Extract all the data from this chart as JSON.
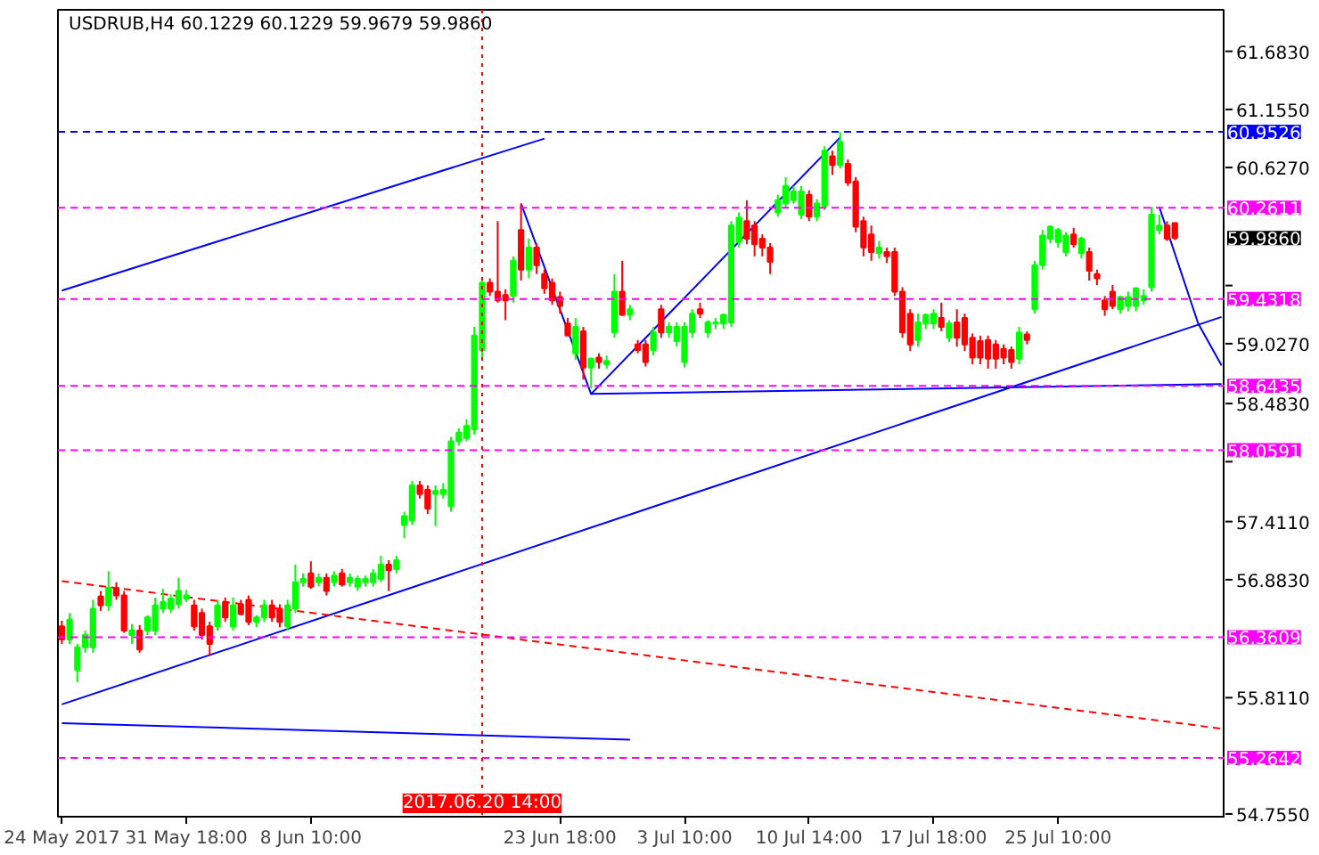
{
  "chart_data": {
    "type": "candlestick",
    "title": "USDRUB,H4 60.1229 60.1229 59.9679 59.9860",
    "categories": [
      "24 May 2017",
      null,
      null,
      null,
      null,
      null,
      null,
      null,
      null,
      null,
      null,
      null,
      null,
      null,
      null,
      null,
      "31 May 18:00",
      null,
      null,
      null,
      null,
      null,
      null,
      null,
      null,
      null,
      null,
      null,
      null,
      null,
      null,
      null,
      "8 Jun 10:00",
      null,
      null,
      null,
      null,
      null,
      null,
      null,
      null,
      null,
      null,
      null,
      null,
      null,
      null,
      null,
      null,
      null,
      null,
      null,
      null,
      null,
      "2017.06.20 14:00",
      null,
      null,
      null,
      null,
      null,
      null,
      null,
      null,
      null,
      "23 Jun 18:00",
      null,
      null,
      null,
      null,
      null,
      null,
      null,
      null,
      null,
      null,
      null,
      null,
      null,
      null,
      null,
      "3 Jul 10:00",
      null,
      null,
      null,
      null,
      null,
      null,
      null,
      null,
      null,
      null,
      null,
      null,
      null,
      null,
      null,
      "10 Jul 14:00",
      null,
      null,
      null,
      null,
      null,
      null,
      null,
      null,
      null,
      null,
      null,
      null,
      null,
      null,
      null,
      "17 Jul 18:00",
      null,
      null,
      null,
      null,
      null,
      null,
      null,
      null,
      null,
      null,
      null,
      null,
      null,
      null,
      null,
      "25 Jul 10:00",
      null,
      null,
      null,
      null,
      null,
      null,
      null,
      null,
      null,
      null,
      null,
      null,
      null,
      null,
      null,
      null,
      null,
      null,
      null,
      null,
      null
    ],
    "ohlc": [
      [
        56.46,
        56.51,
        56.3,
        56.34
      ],
      [
        56.34,
        56.58,
        56.3,
        56.52
      ],
      [
        56.06,
        56.3,
        55.95,
        56.27
      ],
      [
        56.27,
        56.42,
        56.22,
        56.38
      ],
      [
        56.27,
        56.7,
        56.22,
        56.62
      ],
      [
        56.73,
        56.78,
        56.6,
        56.65
      ],
      [
        56.65,
        56.96,
        56.6,
        56.81
      ],
      [
        56.81,
        56.86,
        56.7,
        56.74
      ],
      [
        56.74,
        56.78,
        56.4,
        56.42
      ],
      [
        56.38,
        56.48,
        56.3,
        56.42
      ],
      [
        56.42,
        56.47,
        56.22,
        56.25
      ],
      [
        56.42,
        56.56,
        56.38,
        56.54
      ],
      [
        56.42,
        56.72,
        56.38,
        56.65
      ],
      [
        56.62,
        56.8,
        56.58,
        56.68
      ],
      [
        56.62,
        56.75,
        56.58,
        56.71
      ],
      [
        56.66,
        56.9,
        56.62,
        56.78
      ],
      [
        56.71,
        56.79,
        56.68,
        56.74
      ],
      [
        56.65,
        56.7,
        56.42,
        56.46
      ],
      [
        56.58,
        56.62,
        56.34,
        56.38
      ],
      [
        56.46,
        56.5,
        56.19,
        56.3
      ],
      [
        56.46,
        56.7,
        56.42,
        56.65
      ],
      [
        56.68,
        56.72,
        56.5,
        56.54
      ],
      [
        56.46,
        56.72,
        56.42,
        56.65
      ],
      [
        56.66,
        56.7,
        56.56,
        56.57
      ],
      [
        56.7,
        56.74,
        56.47,
        56.5
      ],
      [
        56.5,
        56.56,
        56.45,
        56.54
      ],
      [
        56.54,
        56.7,
        56.5,
        56.65
      ],
      [
        56.65,
        56.7,
        56.5,
        56.54
      ],
      [
        56.62,
        56.66,
        56.45,
        56.5
      ],
      [
        56.46,
        56.7,
        56.42,
        56.65
      ],
      [
        56.62,
        57.02,
        56.58,
        56.86
      ],
      [
        56.86,
        56.94,
        56.82,
        56.89
      ],
      [
        56.94,
        57.05,
        56.8,
        56.82
      ],
      [
        56.86,
        56.94,
        56.82,
        56.9
      ],
      [
        56.9,
        56.94,
        56.74,
        56.78
      ],
      [
        56.86,
        56.96,
        56.82,
        56.92
      ],
      [
        56.94,
        56.98,
        56.82,
        56.84
      ],
      [
        56.86,
        56.94,
        56.82,
        56.9
      ],
      [
        56.82,
        56.92,
        56.78,
        56.89
      ],
      [
        56.86,
        56.92,
        56.82,
        56.89
      ],
      [
        56.86,
        56.98,
        56.82,
        56.94
      ],
      [
        56.89,
        57.1,
        56.86,
        57.02
      ],
      [
        57.02,
        57.06,
        56.78,
        56.97
      ],
      [
        56.98,
        57.1,
        56.94,
        57.06
      ],
      [
        57.38,
        57.5,
        57.26,
        57.46
      ],
      [
        57.42,
        57.78,
        57.38,
        57.74
      ],
      [
        57.74,
        57.78,
        57.62,
        57.66
      ],
      [
        57.7,
        57.74,
        57.48,
        57.53
      ],
      [
        57.66,
        57.74,
        57.37,
        57.69
      ],
      [
        57.66,
        57.76,
        57.62,
        57.7
      ],
      [
        57.55,
        58.18,
        57.5,
        58.14
      ],
      [
        58.14,
        58.26,
        58.1,
        58.22
      ],
      [
        58.17,
        58.34,
        58.14,
        58.28
      ],
      [
        58.25,
        59.18,
        58.2,
        59.1
      ],
      [
        58.97,
        59.6,
        58.9,
        59.58
      ],
      [
        59.58,
        59.62,
        59.46,
        59.5
      ],
      [
        59.5,
        60.14,
        59.4,
        59.42
      ],
      [
        59.47,
        59.52,
        59.24,
        59.42
      ],
      [
        59.46,
        59.82,
        59.4,
        59.78
      ],
      [
        60.06,
        60.3,
        59.6,
        59.7
      ],
      [
        59.7,
        59.98,
        59.62,
        59.9
      ],
      [
        59.9,
        59.94,
        59.66,
        59.74
      ],
      [
        59.66,
        59.7,
        59.48,
        59.53
      ],
      [
        59.58,
        59.62,
        59.38,
        59.42
      ],
      [
        59.45,
        59.5,
        59.3,
        59.37
      ],
      [
        59.21,
        59.26,
        59.1,
        59.1
      ],
      [
        58.94,
        59.26,
        58.88,
        59.18
      ],
      [
        59.14,
        59.18,
        58.7,
        58.81
      ],
      [
        58.81,
        58.9,
        58.62,
        58.89
      ],
      [
        58.9,
        58.94,
        58.8,
        58.86
      ],
      [
        58.84,
        58.92,
        58.8,
        58.87
      ],
      [
        59.13,
        59.66,
        59.08,
        59.5
      ],
      [
        59.5,
        59.78,
        59.28,
        59.29
      ],
      [
        59.29,
        59.38,
        59.24,
        59.34
      ],
      [
        59.02,
        59.06,
        58.94,
        58.97
      ],
      [
        59.02,
        59.06,
        58.82,
        58.86
      ],
      [
        58.97,
        59.18,
        58.92,
        59.13
      ],
      [
        59.34,
        59.38,
        59.08,
        59.13
      ],
      [
        59.13,
        59.22,
        59.08,
        59.18
      ],
      [
        59.05,
        59.22,
        59.0,
        59.18
      ],
      [
        58.86,
        59.22,
        58.81,
        59.18
      ],
      [
        59.13,
        59.34,
        59.08,
        59.3
      ],
      [
        59.34,
        59.4,
        59.26,
        59.3
      ],
      [
        59.13,
        59.24,
        59.08,
        59.22
      ],
      [
        59.21,
        59.26,
        59.16,
        59.22
      ],
      [
        59.21,
        59.3,
        59.16,
        59.29
      ],
      [
        59.22,
        60.14,
        59.18,
        60.1
      ],
      [
        59.95,
        60.22,
        59.9,
        60.17
      ],
      [
        60.14,
        60.33,
        59.93,
        59.98
      ],
      [
        60.1,
        60.14,
        59.82,
        59.93
      ],
      [
        59.98,
        60.02,
        59.82,
        59.9
      ],
      [
        59.9,
        59.94,
        59.66,
        59.77
      ],
      [
        60.22,
        60.38,
        60.18,
        60.33
      ],
      [
        60.3,
        60.54,
        60.26,
        60.46
      ],
      [
        60.33,
        60.46,
        60.3,
        60.41
      ],
      [
        60.2,
        60.46,
        60.16,
        60.41
      ],
      [
        60.38,
        60.42,
        60.14,
        60.18
      ],
      [
        60.18,
        60.34,
        60.14,
        60.3
      ],
      [
        60.28,
        60.82,
        60.24,
        60.78
      ],
      [
        60.73,
        60.78,
        60.56,
        60.65
      ],
      [
        60.65,
        60.95,
        60.62,
        60.86
      ],
      [
        60.66,
        60.7,
        60.46,
        60.49
      ],
      [
        60.5,
        60.54,
        60.04,
        60.09
      ],
      [
        60.14,
        60.18,
        59.82,
        59.9
      ],
      [
        60.02,
        60.1,
        59.78,
        59.86
      ],
      [
        59.85,
        59.96,
        59.8,
        59.9
      ],
      [
        59.86,
        59.9,
        59.76,
        59.82
      ],
      [
        59.86,
        59.9,
        59.46,
        59.5
      ],
      [
        59.5,
        59.54,
        59.08,
        59.13
      ],
      [
        59.3,
        59.34,
        58.96,
        59.02
      ],
      [
        59.06,
        59.3,
        59.0,
        59.22
      ],
      [
        59.21,
        59.3,
        59.16,
        59.29
      ],
      [
        59.21,
        59.34,
        59.16,
        59.3
      ],
      [
        59.26,
        59.4,
        59.14,
        59.18
      ],
      [
        59.08,
        59.24,
        59.04,
        59.21
      ],
      [
        59.22,
        59.34,
        59.0,
        59.08
      ],
      [
        59.26,
        59.3,
        58.96,
        59.02
      ],
      [
        59.08,
        59.12,
        58.84,
        58.9
      ],
      [
        59.05,
        59.1,
        58.84,
        58.9
      ],
      [
        59.06,
        59.1,
        58.8,
        58.89
      ],
      [
        59.02,
        59.06,
        58.8,
        58.89
      ],
      [
        58.98,
        59.02,
        58.84,
        58.9
      ],
      [
        58.97,
        59.0,
        58.8,
        58.86
      ],
      [
        58.89,
        59.18,
        58.84,
        59.13
      ],
      [
        59.11,
        59.14,
        59.02,
        59.06
      ],
      [
        59.34,
        59.78,
        59.3,
        59.74
      ],
      [
        59.74,
        60.06,
        59.7,
        60.01
      ],
      [
        59.98,
        60.1,
        59.94,
        60.09
      ],
      [
        59.95,
        60.08,
        59.9,
        60.06
      ],
      [
        59.86,
        60.04,
        59.82,
        60.01
      ],
      [
        60.02,
        60.08,
        59.9,
        59.93
      ],
      [
        59.85,
        60.0,
        59.8,
        59.98
      ],
      [
        59.86,
        59.9,
        59.6,
        59.69
      ],
      [
        59.66,
        59.7,
        59.56,
        59.62
      ],
      [
        59.42,
        59.46,
        59.28,
        59.34
      ],
      [
        59.5,
        59.56,
        59.34,
        59.37
      ],
      [
        59.34,
        59.46,
        59.3,
        59.45
      ],
      [
        59.37,
        59.5,
        59.32,
        59.45
      ],
      [
        59.37,
        59.54,
        59.32,
        59.53
      ],
      [
        59.42,
        59.52,
        59.38,
        59.46
      ],
      [
        59.54,
        60.27,
        59.5,
        60.2
      ],
      [
        60.06,
        60.2,
        60.02,
        60.1
      ],
      [
        60.1,
        60.14,
        59.96,
        59.98
      ],
      [
        60.1229,
        60.1229,
        59.9679,
        59.986
      ],
      null,
      null,
      null,
      null,
      null,
      null
    ],
    "colors": [
      "#ff0000",
      "#00ff00",
      "#00ff00",
      "#00ff00",
      "#00ff00",
      "#ff0000",
      "#00ff00",
      "#ff0000",
      "#ff0000",
      "#00ff00",
      "#ff0000",
      "#00ff00",
      "#00ff00",
      "#00ff00",
      "#00ff00",
      "#00ff00",
      "#00ff00",
      "#ff0000",
      "#ff0000",
      "#ff0000",
      "#00ff00",
      "#ff0000",
      "#00ff00",
      "#ff0000",
      "#ff0000",
      "#00ff00",
      "#00ff00",
      "#ff0000",
      "#ff0000",
      "#00ff00",
      "#00ff00",
      "#00ff00",
      "#ff0000",
      "#00ff00",
      "#ff0000",
      "#00ff00",
      "#ff0000",
      "#00ff00",
      "#00ff00",
      "#00ff00",
      "#00ff00",
      "#00ff00",
      "#ff0000",
      "#00ff00",
      "#00ff00",
      "#00ff00",
      "#ff0000",
      "#ff0000",
      "#00ff00",
      "#00ff00",
      "#00ff00",
      "#00ff00",
      "#00ff00",
      "#00ff00",
      "#00ff00",
      "#ff0000",
      "#ff0000",
      "#ff0000",
      "#00ff00",
      "#ff0000",
      "#00ff00",
      "#ff0000",
      "#ff0000",
      "#ff0000",
      "#ff0000",
      "#ff0000",
      "#00ff00",
      "#ff0000",
      "#00ff00",
      "#ff0000",
      "#00ff00",
      "#00ff00",
      "#ff0000",
      "#00ff00",
      "#ff0000",
      "#ff0000",
      "#00ff00",
      "#ff0000",
      "#00ff00",
      "#00ff00",
      "#00ff00",
      "#00ff00",
      "#ff0000",
      "#00ff00",
      "#00ff00",
      "#00ff00",
      "#00ff00",
      "#00ff00",
      "#ff0000",
      "#ff0000",
      "#ff0000",
      "#ff0000",
      "#00ff00",
      "#00ff00",
      "#00ff00",
      "#00ff00",
      "#ff0000",
      "#00ff00",
      "#00ff00",
      "#ff0000",
      "#00ff00",
      "#ff0000",
      "#ff0000",
      "#ff0000",
      "#ff0000",
      "#00ff00",
      "#ff0000",
      "#ff0000",
      "#ff0000",
      "#ff0000",
      "#00ff00",
      "#00ff00",
      "#00ff00",
      "#ff0000",
      "#00ff00",
      "#ff0000",
      "#ff0000",
      "#ff0000",
      "#ff0000",
      "#ff0000",
      "#ff0000",
      "#ff0000",
      "#ff0000",
      "#00ff00",
      "#ff0000",
      "#00ff00",
      "#00ff00",
      "#00ff00",
      "#00ff00",
      "#00ff00",
      "#ff0000",
      "#00ff00",
      "#ff0000",
      "#ff0000",
      "#ff0000",
      "#ff0000",
      "#00ff00",
      "#00ff00",
      "#00ff00",
      "#00ff00",
      "#00ff00",
      "#00ff00",
      "#ff0000",
      "#ff0000",
      null,
      null,
      null,
      null,
      null,
      null
    ],
    "series": [
      {
        "type": "line",
        "color": "#0000ff",
        "line_style": "solid",
        "values": [
          59.51,
          null,
          null,
          null,
          null,
          null,
          null,
          null,
          null,
          null,
          null,
          null,
          null,
          null,
          null,
          null,
          null,
          null,
          null,
          null,
          null,
          null,
          null,
          null,
          null,
          null,
          null,
          null,
          null,
          null,
          null,
          null,
          null,
          null,
          null,
          null,
          null,
          null,
          null,
          null,
          null,
          null,
          null,
          null,
          null,
          null,
          null,
          null,
          null,
          null,
          null,
          null,
          null,
          null,
          null,
          null,
          null,
          null,
          null,
          null,
          null,
          null,
          60.89,
          null,
          null,
          null,
          null,
          null,
          null,
          null,
          null,
          null,
          null,
          null,
          null,
          null,
          null,
          null,
          null,
          null,
          null,
          null,
          null,
          null,
          null,
          null,
          null,
          null,
          null,
          null,
          null,
          null,
          null,
          null,
          null,
          null,
          null,
          null,
          null,
          null,
          null,
          null,
          null,
          null,
          null,
          null,
          null,
          null,
          null,
          null,
          null,
          null,
          null,
          null,
          null,
          null,
          null,
          null,
          null,
          null,
          null,
          null,
          null,
          null,
          null,
          null,
          null,
          null,
          null,
          null,
          null,
          null,
          null,
          null,
          null,
          null,
          null,
          null,
          null,
          null,
          null,
          null,
          null,
          null,
          null,
          null,
          null,
          null,
          null,
          null
        ]
      },
      {
        "type": "line",
        "color": "#0000ff",
        "line_style": "solid",
        "values": [
          55.75,
          null,
          null,
          null,
          null,
          null,
          null,
          null,
          null,
          null,
          null,
          null,
          null,
          null,
          null,
          null,
          null,
          null,
          null,
          null,
          null,
          null,
          null,
          null,
          null,
          null,
          null,
          null,
          null,
          null,
          null,
          null,
          null,
          null,
          null,
          null,
          null,
          null,
          null,
          null,
          null,
          null,
          null,
          null,
          null,
          null,
          null,
          null,
          null,
          null,
          null,
          null,
          null,
          null,
          null,
          null,
          null,
          null,
          null,
          null,
          null,
          null,
          null,
          null,
          null,
          null,
          null,
          null,
          null,
          null,
          null,
          null,
          null,
          null,
          null,
          null,
          null,
          null,
          null,
          null,
          null,
          null,
          null,
          null,
          null,
          null,
          null,
          null,
          null,
          null,
          null,
          null,
          null,
          null,
          null,
          null,
          null,
          null,
          null,
          null,
          null,
          null,
          null,
          null,
          null,
          null,
          null,
          null,
          null,
          null,
          null,
          null,
          null,
          null,
          null,
          null,
          null,
          null,
          null,
          null,
          null,
          null,
          null,
          null,
          null,
          null,
          null,
          null,
          null,
          null,
          null,
          null,
          null,
          null,
          null,
          null,
          null,
          null,
          null,
          null,
          null,
          null,
          null,
          null,
          null,
          null,
          null,
          null,
          null,
          59.27
        ]
      },
      {
        "type": "line",
        "color": "#0000ff",
        "line_style": "solid",
        "values": [
          55.58,
          null,
          null,
          null,
          null,
          null,
          null,
          null,
          null,
          null,
          null,
          null,
          null,
          null,
          null,
          null,
          null,
          null,
          null,
          null,
          null,
          null,
          null,
          null,
          null,
          null,
          null,
          null,
          null,
          null,
          null,
          null,
          null,
          null,
          null,
          null,
          null,
          null,
          null,
          null,
          null,
          null,
          null,
          null,
          null,
          null,
          null,
          null,
          null,
          null,
          null,
          null,
          null,
          null,
          null,
          null,
          null,
          null,
          null,
          null,
          null,
          null,
          null,
          null,
          null,
          null,
          null,
          null,
          null,
          null,
          null,
          null,
          null,
          55.43,
          null,
          null,
          null,
          null,
          null,
          null,
          null,
          null,
          null,
          null,
          null,
          null,
          null,
          null,
          null,
          null,
          null,
          null,
          null,
          null,
          null,
          null,
          null,
          null,
          null,
          null,
          null,
          null,
          null,
          null,
          null,
          null,
          null,
          null,
          null,
          null,
          null,
          null,
          null,
          null,
          null,
          null,
          null,
          null,
          null,
          null,
          null,
          null,
          null,
          null,
          null,
          null,
          null,
          null,
          null,
          null,
          null,
          null,
          null,
          null,
          null,
          null,
          null,
          null,
          null,
          null,
          null,
          null,
          null,
          null,
          null,
          null,
          null,
          null,
          null,
          null
        ]
      },
      {
        "type": "line",
        "color": "#ff0000",
        "line_style": "dashed",
        "values": [
          56.87,
          null,
          null,
          null,
          null,
          null,
          null,
          null,
          null,
          null,
          null,
          null,
          null,
          null,
          null,
          null,
          null,
          null,
          null,
          null,
          null,
          null,
          null,
          null,
          null,
          null,
          null,
          null,
          null,
          null,
          null,
          null,
          null,
          null,
          null,
          null,
          null,
          null,
          null,
          null,
          null,
          null,
          null,
          null,
          null,
          null,
          null,
          null,
          null,
          null,
          null,
          null,
          null,
          null,
          null,
          null,
          null,
          null,
          null,
          null,
          null,
          null,
          null,
          null,
          null,
          null,
          null,
          null,
          null,
          null,
          null,
          null,
          null,
          null,
          null,
          null,
          null,
          null,
          null,
          null,
          null,
          null,
          null,
          null,
          null,
          null,
          null,
          null,
          null,
          null,
          null,
          null,
          null,
          null,
          null,
          null,
          null,
          null,
          null,
          null,
          null,
          null,
          null,
          null,
          null,
          null,
          null,
          null,
          null,
          null,
          null,
          null,
          null,
          null,
          null,
          null,
          null,
          null,
          null,
          null,
          null,
          null,
          null,
          null,
          null,
          null,
          null,
          null,
          null,
          null,
          null,
          null,
          null,
          null,
          null,
          null,
          null,
          null,
          null,
          null,
          null,
          null,
          null,
          null,
          null,
          null,
          null,
          null,
          null,
          55.53
        ]
      },
      {
        "type": "line",
        "color": "#0000ff",
        "line_style": "solid",
        "values": [
          null,
          null,
          null,
          null,
          null,
          null,
          null,
          null,
          null,
          null,
          null,
          null,
          null,
          null,
          null,
          null,
          null,
          null,
          null,
          null,
          null,
          null,
          null,
          null,
          null,
          null,
          null,
          null,
          null,
          null,
          null,
          null,
          null,
          null,
          null,
          null,
          null,
          null,
          null,
          null,
          null,
          null,
          null,
          null,
          null,
          null,
          null,
          null,
          null,
          null,
          null,
          null,
          null,
          null,
          null,
          null,
          null,
          null,
          null,
          60.3,
          null,
          null,
          null,
          null,
          null,
          null,
          null,
          null,
          58.57,
          null,
          null,
          null,
          null,
          null,
          null,
          null,
          null,
          null,
          null,
          null,
          null,
          null,
          null,
          null,
          null,
          null,
          null,
          null,
          null,
          null,
          null,
          null,
          null,
          null,
          null,
          null,
          null,
          null,
          null,
          null,
          60.9,
          null,
          null,
          null,
          null,
          null,
          null,
          null,
          null,
          null,
          null,
          null,
          null,
          null,
          null,
          null,
          null,
          null,
          null,
          null,
          null,
          null,
          null,
          null,
          null,
          null,
          null,
          null,
          null,
          null,
          null,
          null,
          null,
          null,
          null,
          null,
          null,
          null,
          null,
          null,
          null,
          null,
          null,
          null,
          null,
          null,
          null,
          null,
          null,
          null
        ]
      },
      {
        "type": "line",
        "color": "#0000ff",
        "line_style": "solid",
        "values": [
          null,
          null,
          null,
          null,
          null,
          null,
          null,
          null,
          null,
          null,
          null,
          null,
          null,
          null,
          null,
          null,
          null,
          null,
          null,
          null,
          null,
          null,
          null,
          null,
          null,
          null,
          null,
          null,
          null,
          null,
          null,
          null,
          null,
          null,
          null,
          null,
          null,
          null,
          null,
          null,
          null,
          null,
          null,
          null,
          null,
          null,
          null,
          null,
          null,
          null,
          null,
          null,
          null,
          null,
          null,
          null,
          null,
          null,
          null,
          null,
          null,
          null,
          null,
          null,
          null,
          null,
          null,
          null,
          58.57,
          null,
          null,
          null,
          null,
          null,
          null,
          null,
          null,
          null,
          null,
          null,
          null,
          null,
          null,
          null,
          null,
          null,
          null,
          null,
          null,
          null,
          null,
          null,
          null,
          null,
          null,
          null,
          null,
          null,
          null,
          null,
          null,
          null,
          null,
          null,
          null,
          null,
          null,
          null,
          null,
          null,
          null,
          null,
          null,
          null,
          null,
          null,
          null,
          null,
          null,
          null,
          null,
          null,
          null,
          null,
          null,
          null,
          null,
          null,
          null,
          null,
          null,
          null,
          null,
          null,
          null,
          null,
          null,
          null,
          null,
          null,
          null,
          null,
          null,
          null,
          null,
          null,
          null,
          null,
          null,
          58.66
        ]
      },
      {
        "type": "line",
        "color": "#0000ff",
        "line_style": "solid",
        "values": [
          null,
          null,
          null,
          null,
          null,
          null,
          null,
          null,
          null,
          null,
          null,
          null,
          null,
          null,
          null,
          null,
          null,
          null,
          null,
          null,
          null,
          null,
          null,
          null,
          null,
          null,
          null,
          null,
          null,
          null,
          null,
          null,
          null,
          null,
          null,
          null,
          null,
          null,
          null,
          null,
          null,
          null,
          null,
          null,
          null,
          null,
          null,
          null,
          null,
          null,
          null,
          null,
          null,
          null,
          null,
          null,
          null,
          null,
          null,
          null,
          null,
          null,
          null,
          null,
          null,
          null,
          null,
          null,
          null,
          null,
          null,
          null,
          null,
          null,
          null,
          null,
          null,
          null,
          null,
          null,
          null,
          null,
          null,
          null,
          null,
          null,
          null,
          null,
          null,
          null,
          null,
          null,
          null,
          null,
          null,
          null,
          null,
          null,
          null,
          null,
          null,
          null,
          null,
          null,
          null,
          null,
          null,
          null,
          null,
          null,
          null,
          null,
          null,
          null,
          null,
          null,
          null,
          null,
          null,
          null,
          null,
          null,
          null,
          null,
          null,
          null,
          null,
          null,
          null,
          null,
          null,
          null,
          null,
          null,
          null,
          null,
          null,
          null,
          null,
          null,
          null,
          60.27,
          null,
          null,
          null,
          null,
          59.21,
          null,
          null,
          58.83
        ]
      }
    ],
    "ref_lines": [
      {
        "axis": "y",
        "value": 60.9526,
        "label": "60.9526",
        "color": "#0000ff",
        "line_style": "dashed"
      },
      {
        "axis": "y",
        "value": 60.2611,
        "label": "60.2611",
        "color": "#ff00ff",
        "line_style": "dashed"
      },
      {
        "axis": "y",
        "value": 59.4318,
        "label": "59.4318",
        "color": "#ff00ff",
        "line_style": "dashed"
      },
      {
        "axis": "y",
        "value": 58.6435,
        "label": "58.6435",
        "color": "#ff00ff",
        "line_style": "dashed"
      },
      {
        "axis": "y",
        "value": 58.0591,
        "label": "58.0591",
        "color": "#ff00ff",
        "line_style": "dashed"
      },
      {
        "axis": "y",
        "value": 56.3609,
        "label": "56.3609",
        "color": "#ff00ff",
        "line_style": "dashed"
      },
      {
        "axis": "y",
        "value": 55.2642,
        "label": "55.2642",
        "color": "#ff00ff",
        "line_style": "dashed"
      },
      {
        "axis": "x",
        "value": "2017.06.20 14:00",
        "color": "#ff0000",
        "line_style": "dotted"
      }
    ],
    "annotations": [
      "59.9860"
    ],
    "ylim": [
      54.73,
      62.06
    ],
    "yticks": [
      {
        "value": 54.755,
        "label": "54.7550"
      },
      {
        "value": 55.811,
        "label": "55.8110"
      },
      {
        "value": 56.883,
        "label": "56.8830"
      },
      {
        "value": 57.411,
        "label": "57.4110"
      },
      {
        "value": 57.955,
        "label": null
      },
      {
        "value": 58.483,
        "label": "58.4830"
      },
      {
        "value": 59.027,
        "label": "59.0270"
      },
      {
        "value": 59.555,
        "label": null
      },
      {
        "value": 60.627,
        "label": "60.6270"
      },
      {
        "value": 61.155,
        "label": "61.1550"
      },
      {
        "value": 61.683,
        "label": "61.6830"
      }
    ]
  }
}
